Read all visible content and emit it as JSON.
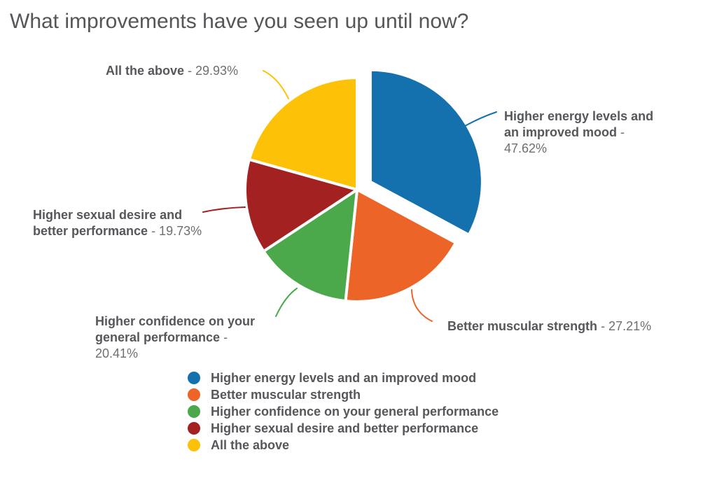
{
  "title": "What improvements have you seen up until now?",
  "chart_data": {
    "type": "pie",
    "title": "What improvements have you seen up until now?",
    "unit": "%",
    "legend_position": "bottom",
    "start_angle_deg": 0,
    "direction": "clockwise",
    "slices": [
      {
        "label": "Higher energy levels and an improved mood",
        "value": 47.62,
        "value_text": " - 47.62%",
        "color": "#1471ae",
        "exploded": true
      },
      {
        "label": "Better muscular strength",
        "value": 27.21,
        "value_text": " - 27.21%",
        "color": "#ec6428",
        "exploded": false
      },
      {
        "label": "Higher confidence on your general performance",
        "value": 20.41,
        "value_text": " - 20.41%",
        "color": "#4ba94b",
        "exploded": false
      },
      {
        "label": "Higher sexual desire and better performance",
        "value": 19.73,
        "value_text": " - 19.73%",
        "color": "#a32121",
        "exploded": false
      },
      {
        "label": "All the above",
        "value": 29.93,
        "value_text": " - 29.93%",
        "color": "#fdc208",
        "exploded": false
      }
    ]
  }
}
